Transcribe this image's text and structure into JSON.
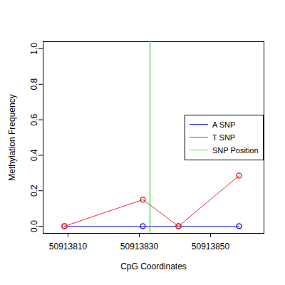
{
  "chart_data": {
    "type": "line",
    "x_label": "CpG Coordinates",
    "y_label": "Methylation Frequency",
    "x": [
      50913809,
      50913831,
      50913841,
      50913858
    ],
    "series": [
      {
        "name": "A SNP",
        "color": "#2b2bd6",
        "values": [
          0,
          0,
          0,
          0
        ],
        "marker": "circle"
      },
      {
        "name": "T SNP",
        "color": "#e8302a",
        "values": [
          0,
          0.15,
          0,
          0.285
        ],
        "marker": "circle"
      }
    ],
    "snp_position": {
      "name": "SNP Position",
      "x": 50913833,
      "color": "#55dd55"
    },
    "xlim": [
      50913803,
      50913865
    ],
    "xticks": [
      50913810,
      50913830,
      50913850
    ],
    "ylim": [
      -0.04,
      1.04
    ],
    "yticks": [
      {
        "value": 0,
        "label": "0.0"
      },
      {
        "value": 0.2,
        "label": "0.2"
      },
      {
        "value": 0.4,
        "label": "0.4"
      },
      {
        "value": 0.6,
        "label": "0.6"
      },
      {
        "value": 0.8,
        "label": "0.8"
      },
      {
        "value": 1,
        "label": "1.0"
      }
    ],
    "legend": "right",
    "grid": false
  }
}
